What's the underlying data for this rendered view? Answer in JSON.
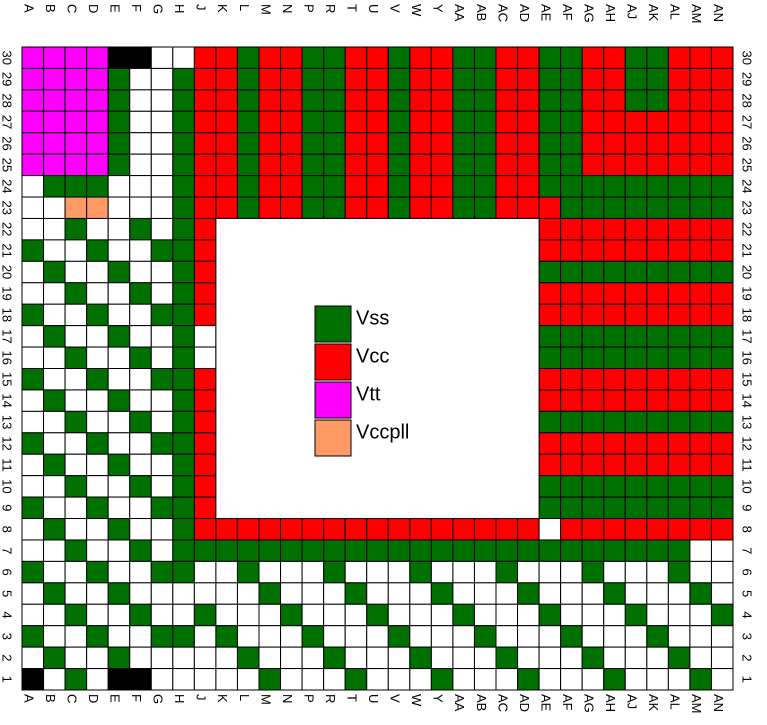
{
  "columns": [
    "A",
    "B",
    "C",
    "D",
    "E",
    "F",
    "G",
    "H",
    "J",
    "K",
    "L",
    "M",
    "N",
    "P",
    "R",
    "T",
    "U",
    "V",
    "W",
    "Y",
    "AA",
    "AB",
    "AC",
    "AD",
    "AE",
    "AF",
    "AG",
    "AH",
    "AJ",
    "AK",
    "AL",
    "AM",
    "AN"
  ],
  "rows": [
    "30",
    "29",
    "28",
    "27",
    "26",
    "25",
    "24",
    "23",
    "22",
    "21",
    "20",
    "19",
    "18",
    "17",
    "16",
    "15",
    "14",
    "13",
    "12",
    "11",
    "10",
    "9",
    "8",
    "7",
    "6",
    "5",
    "4",
    "3",
    "2",
    "1"
  ],
  "legend": [
    {
      "label": "Vss",
      "color": "#007000"
    },
    {
      "label": "Vcc",
      "color": "#ff0000"
    },
    {
      "label": "Vtt",
      "color": "#ff00ff"
    },
    {
      "label": "Vccpll",
      "color": "#ff9966"
    }
  ]
}
